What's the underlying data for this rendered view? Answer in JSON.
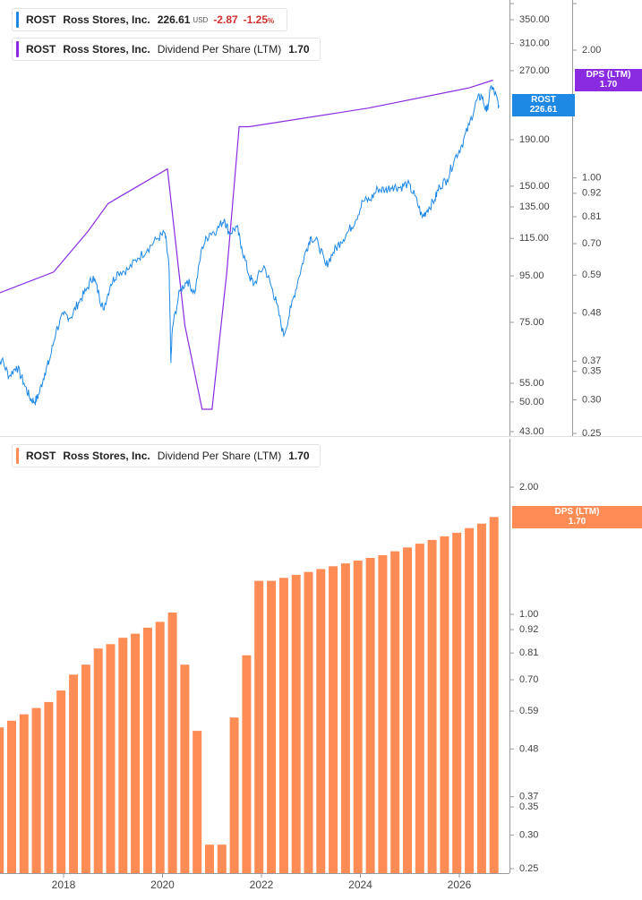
{
  "colors": {
    "price": "#1e88e5",
    "dps_line": "#8a2be2",
    "dps_bar": "#ff8c55",
    "negative": "#d12f2f",
    "axis": "#9a9a9a"
  },
  "top_legend": {
    "price": {
      "ticker": "ROST",
      "name": "Ross Stores, Inc.",
      "value": "226.61",
      "currency": "USD",
      "change": "-2.87",
      "change_pct": "-1.25",
      "pct_unit": "%"
    },
    "dps": {
      "ticker": "ROST",
      "name": "Ross Stores, Inc.",
      "series": "Dividend Per Share (LTM)",
      "value": "1.70"
    }
  },
  "bottom_legend": {
    "ticker": "ROST",
    "name": "Ross Stores, Inc.",
    "series": "Dividend Per Share (LTM)",
    "value": "1.70"
  },
  "badges": {
    "price": {
      "line1": "ROST",
      "line2": "226.61"
    },
    "dps_top": {
      "line1": "DPS (LTM)",
      "line2": "1.70"
    },
    "dps_bottom": {
      "line1": "DPS (LTM)",
      "line2": "1.70"
    }
  },
  "chart_data": [
    {
      "type": "line",
      "scale": "log",
      "price_axis": {
        "ticks": [
          "350.00",
          "310.00",
          "270.00",
          "190.00",
          "150.00",
          "135.00",
          "115.00",
          "95.00",
          "75.00",
          "55.00",
          "50.00",
          "43.00"
        ],
        "range": [
          43,
          400
        ]
      },
      "dps_axis": {
        "ticks": [
          "2.00",
          "1.00",
          "0.92",
          "0.81",
          "0.70",
          "0.59",
          "0.48",
          "0.37",
          "0.35",
          "0.30",
          "0.25"
        ],
        "range": [
          0.25,
          2.3
        ]
      },
      "x_range": [
        2016.6,
        2027.5
      ],
      "series": [
        {
          "name": "ROST",
          "axis": "price",
          "points": [
            [
              2016.6,
              60
            ],
            [
              2016.75,
              62
            ],
            [
              2016.9,
              57
            ],
            [
              2017.05,
              60
            ],
            [
              2017.2,
              55
            ],
            [
              2017.32,
              51
            ],
            [
              2017.42,
              50
            ],
            [
              2017.5,
              52
            ],
            [
              2017.62,
              58
            ],
            [
              2017.72,
              62
            ],
            [
              2017.85,
              72
            ],
            [
              2018.0,
              78
            ],
            [
              2018.15,
              77
            ],
            [
              2018.3,
              83
            ],
            [
              2018.45,
              88
            ],
            [
              2018.6,
              95
            ],
            [
              2018.72,
              86
            ],
            [
              2018.8,
              80
            ],
            [
              2018.95,
              91
            ],
            [
              2019.1,
              97
            ],
            [
              2019.3,
              98
            ],
            [
              2019.5,
              104
            ],
            [
              2019.7,
              109
            ],
            [
              2019.9,
              115
            ],
            [
              2020.05,
              118
            ],
            [
              2020.13,
              100
            ],
            [
              2020.17,
              61
            ],
            [
              2020.2,
              73
            ],
            [
              2020.35,
              88
            ],
            [
              2020.5,
              93
            ],
            [
              2020.65,
              87
            ],
            [
              2020.8,
              110
            ],
            [
              2020.95,
              118
            ],
            [
              2021.1,
              120
            ],
            [
              2021.25,
              127
            ],
            [
              2021.35,
              118
            ],
            [
              2021.5,
              122
            ],
            [
              2021.6,
              110
            ],
            [
              2021.75,
              95
            ],
            [
              2021.85,
              91
            ],
            [
              2022.05,
              100
            ],
            [
              2022.2,
              90
            ],
            [
              2022.3,
              83
            ],
            [
              2022.45,
              70
            ],
            [
              2022.6,
              81
            ],
            [
              2022.75,
              94
            ],
            [
              2022.9,
              108
            ],
            [
              2023.0,
              116
            ],
            [
              2023.15,
              112
            ],
            [
              2023.3,
              100
            ],
            [
              2023.45,
              107
            ],
            [
              2023.6,
              113
            ],
            [
              2023.75,
              119
            ],
            [
              2023.9,
              126
            ],
            [
              2024.05,
              139
            ],
            [
              2024.2,
              140
            ],
            [
              2024.35,
              148
            ],
            [
              2024.5,
              147
            ],
            [
              2024.65,
              150
            ],
            [
              2024.8,
              149
            ],
            [
              2024.95,
              152
            ],
            [
              2025.1,
              143
            ],
            [
              2025.25,
              128
            ],
            [
              2025.35,
              133
            ],
            [
              2025.5,
              140
            ],
            [
              2025.6,
              150
            ],
            [
              2025.75,
              155
            ],
            [
              2025.9,
              172
            ],
            [
              2026.05,
              185
            ],
            [
              2026.2,
              205
            ],
            [
              2026.35,
              232
            ],
            [
              2026.45,
              238
            ],
            [
              2026.55,
              219
            ],
            [
              2026.65,
              250
            ],
            [
              2026.72,
              240
            ],
            [
              2026.8,
              226.61
            ]
          ]
        },
        {
          "name": "Dividend Per Share (LTM)",
          "axis": "dps",
          "points": [
            [
              2016.6,
              0.53
            ],
            [
              2017.8,
              0.6
            ],
            [
              2018.5,
              0.75
            ],
            [
              2018.9,
              0.87
            ],
            [
              2020.1,
              1.05
            ],
            [
              2020.45,
              0.45
            ],
            [
              2020.8,
              0.285
            ],
            [
              2021.0,
              0.285
            ],
            [
              2021.3,
              0.6
            ],
            [
              2021.55,
              1.32
            ],
            [
              2021.75,
              1.32
            ],
            [
              2024.15,
              1.46
            ],
            [
              2026.2,
              1.63
            ],
            [
              2026.68,
              1.7
            ]
          ]
        }
      ]
    },
    {
      "type": "bar",
      "scale": "log",
      "y_axis": {
        "ticks": [
          "2.00",
          "1.00",
          "0.92",
          "0.81",
          "0.70",
          "0.59",
          "0.48",
          "0.37",
          "0.35",
          "0.30",
          "0.25"
        ],
        "range": [
          0.25,
          2.3
        ]
      },
      "x_ticks": [
        "2018",
        "2020",
        "2022",
        "2024",
        "2026"
      ],
      "x_range": [
        2016.6,
        2027.5
      ],
      "series": [
        {
          "name": "Dividend Per Share (LTM)",
          "x": [
            2016.7,
            2016.95,
            2017.2,
            2017.45,
            2017.7,
            2017.95,
            2018.2,
            2018.45,
            2018.7,
            2018.95,
            2019.2,
            2019.45,
            2019.7,
            2019.95,
            2020.2,
            2020.45,
            2020.7,
            2020.95,
            2021.2,
            2021.45,
            2021.7,
            2021.95,
            2022.2,
            2022.45,
            2022.7,
            2022.95,
            2023.2,
            2023.45,
            2023.7,
            2023.95,
            2024.2,
            2024.45,
            2024.7,
            2024.95,
            2025.2,
            2025.45,
            2025.7,
            2025.95,
            2026.2,
            2026.45,
            2026.7
          ],
          "values": [
            0.54,
            0.56,
            0.58,
            0.6,
            0.62,
            0.66,
            0.72,
            0.76,
            0.83,
            0.85,
            0.88,
            0.9,
            0.93,
            0.96,
            1.01,
            0.76,
            0.53,
            0.285,
            0.285,
            0.57,
            0.8,
            1.2,
            1.2,
            1.22,
            1.24,
            1.26,
            1.28,
            1.3,
            1.32,
            1.34,
            1.36,
            1.38,
            1.41,
            1.44,
            1.47,
            1.5,
            1.53,
            1.56,
            1.6,
            1.64,
            1.7
          ]
        }
      ]
    }
  ]
}
